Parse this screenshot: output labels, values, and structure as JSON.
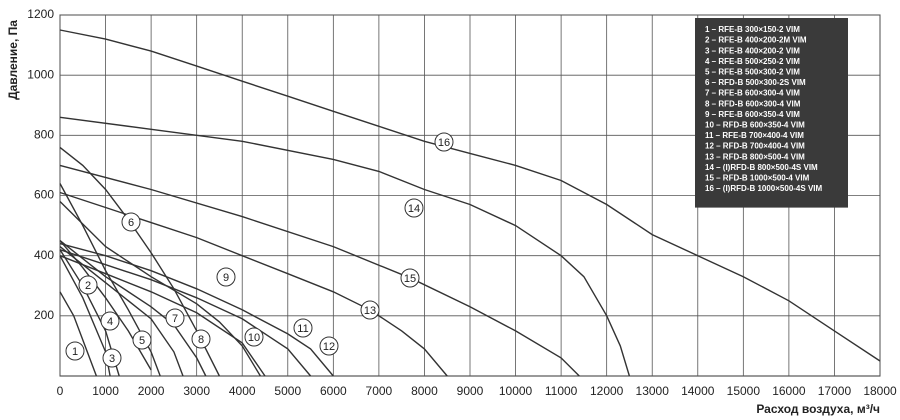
{
  "chart_data": {
    "type": "line",
    "x_label": "Расход воздуха, м³/ч",
    "y_label": "Давление, Па",
    "xlim": [
      0,
      18000
    ],
    "xticks": [
      0,
      1000,
      2000,
      3000,
      4000,
      5000,
      6000,
      7000,
      8000,
      9000,
      10000,
      11000,
      12000,
      13000,
      14000,
      15000,
      16000,
      17000,
      18000
    ],
    "ylim": [
      0,
      1200
    ],
    "yticks": [
      200,
      400,
      600,
      800,
      1000,
      1200
    ],
    "grid": true,
    "color": "#333333",
    "series": [
      {
        "name": "1 – RFE-B 300×150-2 VIM",
        "label": "1",
        "x": [
          0,
          300,
          600,
          800
        ],
        "values": [
          280,
          200,
          80,
          0
        ]
      },
      {
        "name": "2 – RFE-B 400×200-2M VIM",
        "label": "2",
        "x": [
          0,
          500,
          1000,
          1100
        ],
        "values": [
          400,
          260,
          80,
          0
        ]
      },
      {
        "name": "3 – RFE-B 400×200-2 VIM",
        "label": "3",
        "x": [
          0,
          500,
          1000,
          1300
        ],
        "values": [
          420,
          300,
          150,
          0
        ]
      },
      {
        "name": "4 – RFE-B 500×250-2 VIM",
        "label": "4",
        "x": [
          0,
          500,
          1000,
          1500,
          2000
        ],
        "values": [
          450,
          360,
          260,
          150,
          20
        ]
      },
      {
        "name": "5 – RFE-B 500×300-2 VIM",
        "label": "5",
        "x": [
          0,
          500,
          1000,
          1500,
          2000,
          2200
        ],
        "values": [
          640,
          500,
          350,
          220,
          80,
          0
        ]
      },
      {
        "name": "6 – RFD-B 500×300-2S VIM",
        "label": "6",
        "x": [
          0,
          500,
          1000,
          1500,
          2000,
          2500,
          3000,
          3500
        ],
        "values": [
          760,
          700,
          620,
          520,
          410,
          290,
          150,
          0
        ]
      },
      {
        "name": "7 – RFE-B 600×300-4 VIM",
        "label": "7",
        "x": [
          0,
          1000,
          2000,
          2500,
          2700
        ],
        "values": [
          430,
          310,
          190,
          80,
          0
        ]
      },
      {
        "name": "8 – RFD-B 600×300-4 VIM",
        "label": "8",
        "x": [
          0,
          1000,
          2000,
          2500,
          3000,
          3200
        ],
        "values": [
          450,
          330,
          230,
          170,
          60,
          0
        ]
      },
      {
        "name": "9 – RFE-B 600×350-4 VIM",
        "label": "9",
        "x": [
          0,
          1000,
          2000,
          3000,
          3500,
          4000,
          4400
        ],
        "values": [
          580,
          430,
          330,
          240,
          180,
          100,
          0
        ]
      },
      {
        "name": "10 – RFD-B 600×350-4 VIM",
        "label": "10",
        "x": [
          0,
          1000,
          2000,
          3000,
          4000,
          4500
        ],
        "values": [
          400,
          340,
          280,
          210,
          110,
          0
        ]
      },
      {
        "name": "11 – RFE-B 700×400-4 VIM",
        "label": "11",
        "x": [
          0,
          1000,
          2000,
          3000,
          4000,
          5000,
          5500
        ],
        "values": [
          420,
          370,
          320,
          260,
          190,
          90,
          0
        ]
      },
      {
        "name": "12 – RFD-B 700×400-4 VIM",
        "label": "12",
        "x": [
          0,
          1000,
          2000,
          3000,
          4000,
          5000,
          5500,
          6000
        ],
        "values": [
          440,
          400,
          350,
          290,
          220,
          140,
          90,
          0
        ]
      },
      {
        "name": "13 – RFD-B 800×500-4 VIM",
        "label": "13",
        "x": [
          0,
          1000,
          2000,
          3000,
          4000,
          5000,
          6000,
          6800,
          7500,
          8000,
          8500
        ],
        "values": [
          610,
          560,
          510,
          460,
          400,
          340,
          280,
          220,
          150,
          90,
          0
        ]
      },
      {
        "name": "14 – (I)RFD-B 800×500-4S VIM",
        "label": "14",
        "x": [
          0,
          2000,
          4000,
          6000,
          7000,
          8000,
          9000,
          10000,
          11000,
          11500,
          12000,
          12300,
          12500
        ],
        "values": [
          860,
          820,
          780,
          720,
          680,
          620,
          570,
          500,
          400,
          330,
          200,
          100,
          0
        ]
      },
      {
        "name": "15 – RFD-B 1000×500-4 VIM",
        "label": "15",
        "x": [
          0,
          2000,
          4000,
          6000,
          7700,
          9000,
          10000,
          11000,
          11400
        ],
        "values": [
          700,
          620,
          530,
          430,
          325,
          230,
          150,
          60,
          0
        ]
      },
      {
        "name": "16 – (I)RFD-B 1000×500-4S VIM",
        "label": "16",
        "x": [
          0,
          1000,
          2000,
          3000,
          4000,
          5000,
          6000,
          7000,
          8000,
          9000,
          10000,
          11000,
          12000,
          13000,
          14000,
          15000,
          16000,
          17000,
          18000
        ],
        "values": [
          1150,
          1120,
          1080,
          1030,
          980,
          930,
          880,
          830,
          780,
          740,
          700,
          650,
          570,
          470,
          400,
          330,
          250,
          150,
          50
        ]
      }
    ]
  }
}
